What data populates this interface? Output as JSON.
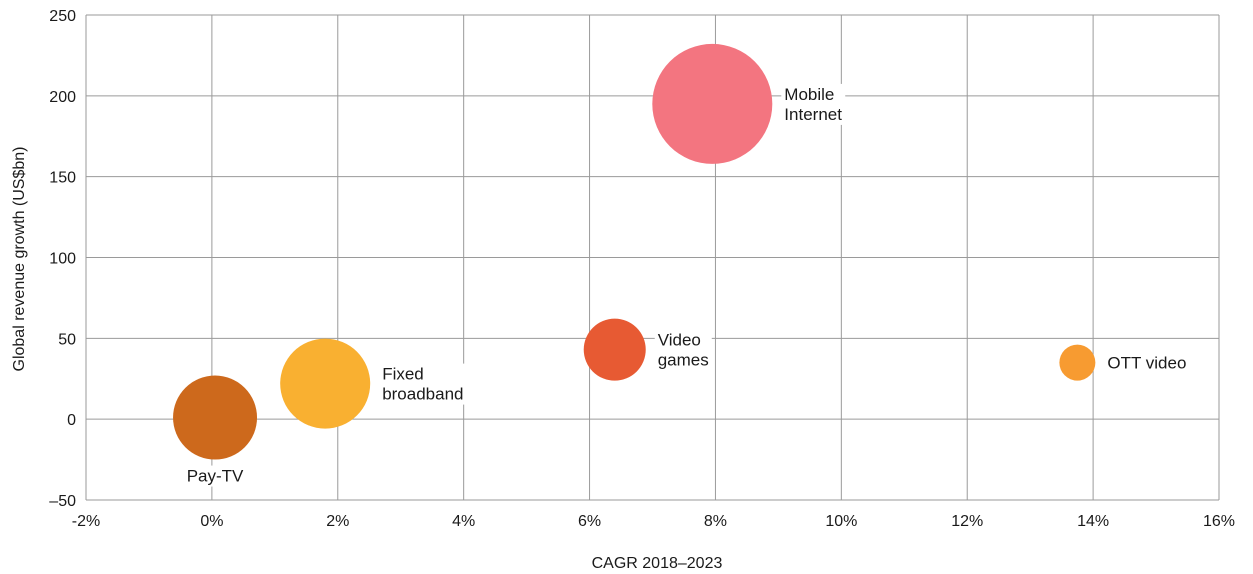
{
  "chart_data": {
    "type": "bubble",
    "title": "",
    "xlabel": "CAGR 2018–2023",
    "ylabel": "Global revenue growth (US$bn)",
    "xlim": [
      -2,
      16
    ],
    "ylim": [
      -50,
      250
    ],
    "x_ticks": [
      -2,
      0,
      2,
      4,
      6,
      8,
      10,
      12,
      14,
      16
    ],
    "x_tick_labels": [
      "-2%",
      "0%",
      "2%",
      "4%",
      "6%",
      "8%",
      "10%",
      "12%",
      "14%",
      "16%"
    ],
    "y_ticks": [
      -50,
      0,
      50,
      100,
      150,
      200,
      250
    ],
    "y_tick_labels": [
      "–50",
      "0",
      "50",
      "100",
      "150",
      "200",
      "250"
    ],
    "grid": true,
    "points": [
      {
        "name": "Pay-TV",
        "label_lines": [
          "Pay-TV"
        ],
        "x": 0.05,
        "y": 1,
        "size": 42,
        "color": "#CD691C"
      },
      {
        "name": "Fixed broadband",
        "label_lines": [
          "Fixed",
          "broadband"
        ],
        "x": 1.8,
        "y": 22,
        "size": 45,
        "color": "#F9B031"
      },
      {
        "name": "Video games",
        "label_lines": [
          "Video",
          "games"
        ],
        "x": 6.4,
        "y": 43,
        "size": 31,
        "color": "#E75A33"
      },
      {
        "name": "Mobile Internet",
        "label_lines": [
          "Mobile",
          "Internet"
        ],
        "x": 7.95,
        "y": 195,
        "size": 60,
        "color": "#F37580"
      },
      {
        "name": "OTT video",
        "label_lines": [
          "OTT video"
        ],
        "x": 13.75,
        "y": 35,
        "size": 18,
        "color": "#F79B31"
      }
    ]
  }
}
